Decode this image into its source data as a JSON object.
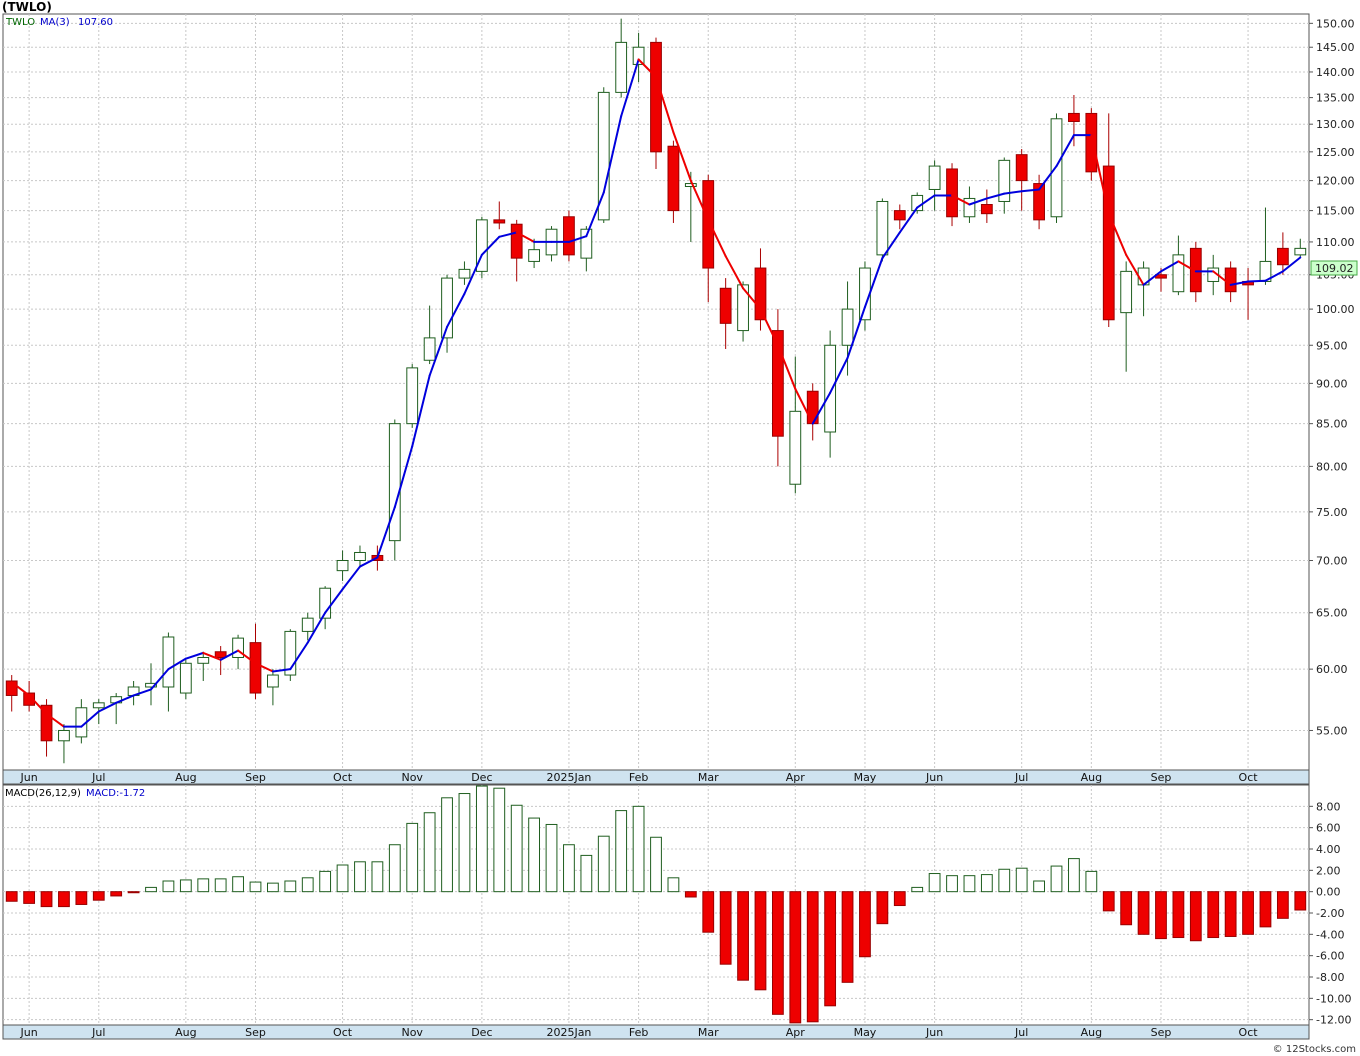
{
  "header": {
    "title": "(TWLO)"
  },
  "footer": {
    "credit": "© 12Stocks.com"
  },
  "chart_data": [
    {
      "type": "candlestick",
      "ticker": "TWLO",
      "legend": {
        "ticker_label": "TWLO",
        "ma_label": "MA(3)",
        "ma_value": "107.60"
      },
      "last_price": "109.02",
      "y_ticks": [
        55,
        60,
        65,
        70,
        75,
        80,
        85,
        90,
        95,
        100,
        105,
        110,
        115,
        120,
        125,
        130,
        135,
        140,
        145,
        150
      ],
      "y_tick_labels": [
        "55.00",
        "60.00",
        "65.00",
        "70.00",
        "75.00",
        "80.00",
        "85.00",
        "90.00",
        "95.00",
        "100.00",
        "105.00",
        "110.00",
        "115.00",
        "120.00",
        "125.00",
        "130.00",
        "135.00",
        "140.00",
        "145.00",
        "150.00"
      ],
      "scale": "log",
      "ylim": [
        52,
        152
      ],
      "months": [
        {
          "label": "Jun",
          "index": 1
        },
        {
          "label": "Jul",
          "index": 5
        },
        {
          "label": "Aug",
          "index": 10
        },
        {
          "label": "Sep",
          "index": 14
        },
        {
          "label": "Oct",
          "index": 19
        },
        {
          "label": "Nov",
          "index": 23
        },
        {
          "label": "Dec",
          "index": 27
        },
        {
          "label": "2025Jan",
          "index": 32
        },
        {
          "label": "Feb",
          "index": 36
        },
        {
          "label": "Mar",
          "index": 40
        },
        {
          "label": "Apr",
          "index": 45
        },
        {
          "label": "May",
          "index": 49
        },
        {
          "label": "Jun",
          "index": 53
        },
        {
          "label": "Jul",
          "index": 58
        },
        {
          "label": "Aug",
          "index": 62
        },
        {
          "label": "Sep",
          "index": 66
        },
        {
          "label": "Oct",
          "index": 71
        }
      ],
      "candles": [
        {
          "o": 59.0,
          "h": 59.5,
          "l": 56.5,
          "c": 57.8
        },
        {
          "o": 58.0,
          "h": 59.0,
          "l": 56.5,
          "c": 57.0
        },
        {
          "o": 57.0,
          "h": 57.5,
          "l": 53.0,
          "c": 54.2
        },
        {
          "o": 54.2,
          "h": 55.5,
          "l": 52.5,
          "c": 55.0
        },
        {
          "o": 54.5,
          "h": 57.5,
          "l": 54.0,
          "c": 56.8
        },
        {
          "o": 56.8,
          "h": 57.5,
          "l": 55.5,
          "c": 57.2
        },
        {
          "o": 57.2,
          "h": 58.0,
          "l": 55.5,
          "c": 57.7
        },
        {
          "o": 57.8,
          "h": 59.0,
          "l": 57.0,
          "c": 58.5
        },
        {
          "o": 58.5,
          "h": 60.5,
          "l": 57.0,
          "c": 58.8
        },
        {
          "o": 58.5,
          "h": 63.2,
          "l": 56.5,
          "c": 62.8
        },
        {
          "o": 58.0,
          "h": 60.8,
          "l": 57.5,
          "c": 60.5
        },
        {
          "o": 60.5,
          "h": 61.5,
          "l": 59.0,
          "c": 61.0
        },
        {
          "o": 61.5,
          "h": 62.0,
          "l": 59.5,
          "c": 61.0
        },
        {
          "o": 61.0,
          "h": 63.0,
          "l": 60.0,
          "c": 62.7
        },
        {
          "o": 62.3,
          "h": 64.0,
          "l": 57.5,
          "c": 58.0
        },
        {
          "o": 58.5,
          "h": 60.0,
          "l": 57.0,
          "c": 59.5
        },
        {
          "o": 59.5,
          "h": 63.5,
          "l": 59.0,
          "c": 63.3
        },
        {
          "o": 63.3,
          "h": 65.0,
          "l": 62.5,
          "c": 64.5
        },
        {
          "o": 64.5,
          "h": 67.5,
          "l": 63.5,
          "c": 67.3
        },
        {
          "o": 69.0,
          "h": 71.0,
          "l": 68.0,
          "c": 70.0
        },
        {
          "o": 70.0,
          "h": 71.5,
          "l": 69.5,
          "c": 70.8
        },
        {
          "o": 70.5,
          "h": 71.5,
          "l": 69.0,
          "c": 70.0
        },
        {
          "o": 72.0,
          "h": 85.5,
          "l": 70.0,
          "c": 85.0
        },
        {
          "o": 85.0,
          "h": 92.5,
          "l": 84.5,
          "c": 92.0
        },
        {
          "o": 93.0,
          "h": 100.5,
          "l": 92.5,
          "c": 96.0
        },
        {
          "o": 96.0,
          "h": 105.0,
          "l": 94.0,
          "c": 104.5
        },
        {
          "o": 104.5,
          "h": 107.0,
          "l": 103.5,
          "c": 105.8
        },
        {
          "o": 105.5,
          "h": 114.0,
          "l": 104.5,
          "c": 113.5
        },
        {
          "o": 113.5,
          "h": 116.5,
          "l": 112.0,
          "c": 113.0
        },
        {
          "o": 112.8,
          "h": 113.5,
          "l": 104.0,
          "c": 107.5
        },
        {
          "o": 107.0,
          "h": 110.5,
          "l": 106.0,
          "c": 108.8
        },
        {
          "o": 108.0,
          "h": 112.5,
          "l": 107.0,
          "c": 112.0
        },
        {
          "o": 114.0,
          "h": 115.0,
          "l": 107.0,
          "c": 108.0
        },
        {
          "o": 107.5,
          "h": 112.5,
          "l": 105.5,
          "c": 112.0
        },
        {
          "o": 113.5,
          "h": 137.0,
          "l": 113.0,
          "c": 136.0
        },
        {
          "o": 136.0,
          "h": 151.0,
          "l": 135.0,
          "c": 146.0
        },
        {
          "o": 141.5,
          "h": 148.0,
          "l": 138.0,
          "c": 145.0
        },
        {
          "o": 146.0,
          "h": 147.0,
          "l": 122.0,
          "c": 125.0
        },
        {
          "o": 126.0,
          "h": 127.0,
          "l": 113.0,
          "c": 115.0
        },
        {
          "o": 119.0,
          "h": 121.5,
          "l": 110.0,
          "c": 119.5
        },
        {
          "o": 120.0,
          "h": 121.0,
          "l": 101.0,
          "c": 106.0
        },
        {
          "o": 103.0,
          "h": 104.5,
          "l": 94.5,
          "c": 98.0
        },
        {
          "o": 97.0,
          "h": 104.0,
          "l": 95.5,
          "c": 103.5
        },
        {
          "o": 106.0,
          "h": 109.0,
          "l": 97.0,
          "c": 98.5
        },
        {
          "o": 97.0,
          "h": 100.0,
          "l": 80.0,
          "c": 83.5
        },
        {
          "o": 78.0,
          "h": 93.5,
          "l": 77.0,
          "c": 86.5
        },
        {
          "o": 89.0,
          "h": 90.0,
          "l": 83.0,
          "c": 85.0
        },
        {
          "o": 84.0,
          "h": 97.0,
          "l": 81.0,
          "c": 95.0
        },
        {
          "o": 95.0,
          "h": 104.0,
          "l": 91.0,
          "c": 100.0
        },
        {
          "o": 98.5,
          "h": 107.0,
          "l": 97.0,
          "c": 106.0
        },
        {
          "o": 108.0,
          "h": 117.0,
          "l": 107.0,
          "c": 116.5
        },
        {
          "o": 115.0,
          "h": 116.0,
          "l": 112.0,
          "c": 113.5
        },
        {
          "o": 115.0,
          "h": 118.0,
          "l": 114.5,
          "c": 117.5
        },
        {
          "o": 118.5,
          "h": 123.5,
          "l": 115.0,
          "c": 122.5
        },
        {
          "o": 122.0,
          "h": 123.0,
          "l": 112.5,
          "c": 114.0
        },
        {
          "o": 114.0,
          "h": 119.0,
          "l": 113.0,
          "c": 117.0
        },
        {
          "o": 116.0,
          "h": 118.5,
          "l": 113.0,
          "c": 114.5
        },
        {
          "o": 116.5,
          "h": 124.0,
          "l": 114.5,
          "c": 123.5
        },
        {
          "o": 124.5,
          "h": 125.5,
          "l": 115.0,
          "c": 120.0
        },
        {
          "o": 119.5,
          "h": 121.0,
          "l": 112.0,
          "c": 113.5
        },
        {
          "o": 114.0,
          "h": 132.0,
          "l": 113.0,
          "c": 131.0
        },
        {
          "o": 132.0,
          "h": 135.5,
          "l": 126.0,
          "c": 130.5
        },
        {
          "o": 132.0,
          "h": 133.0,
          "l": 120.0,
          "c": 121.5
        },
        {
          "o": 122.5,
          "h": 132.0,
          "l": 97.5,
          "c": 98.5
        },
        {
          "o": 99.5,
          "h": 107.0,
          "l": 91.5,
          "c": 105.5
        },
        {
          "o": 103.5,
          "h": 107.0,
          "l": 99.0,
          "c": 106.0
        },
        {
          "o": 105.0,
          "h": 106.0,
          "l": 102.5,
          "c": 104.5
        },
        {
          "o": 102.5,
          "h": 111.0,
          "l": 102.0,
          "c": 108.0
        },
        {
          "o": 109.0,
          "h": 110.0,
          "l": 101.0,
          "c": 102.5
        },
        {
          "o": 104.0,
          "h": 108.0,
          "l": 102.0,
          "c": 106.0
        },
        {
          "o": 106.0,
          "h": 107.0,
          "l": 101.0,
          "c": 102.5
        },
        {
          "o": 104.0,
          "h": 106.0,
          "l": 98.5,
          "c": 103.5
        },
        {
          "o": 104.0,
          "h": 115.5,
          "l": 103.5,
          "c": 107.0
        },
        {
          "o": 109.0,
          "h": 111.5,
          "l": 105.0,
          "c": 106.5
        },
        {
          "o": 108.0,
          "h": 110.5,
          "l": 107.5,
          "c": 109.0
        }
      ],
      "ma": [
        58.9,
        57.8,
        56.3,
        55.3,
        55.3,
        56.5,
        57.2,
        57.8,
        58.3,
        60.0,
        60.9,
        61.4,
        60.8,
        61.6,
        60.5,
        59.8,
        60.0,
        62.3,
        65.0,
        67.2,
        69.4,
        70.3,
        75.5,
        82.3,
        91.0,
        97.5,
        102.2,
        108.0,
        110.8,
        111.5,
        110.0,
        110.0,
        110.0,
        110.9,
        118.0,
        131.5,
        142.5,
        139.0,
        128.5,
        120.0,
        113.5,
        107.8,
        103.0,
        100.0,
        95.0,
        89.3,
        85.0,
        88.8,
        93.3,
        100.3,
        107.5,
        111.5,
        115.5,
        117.5,
        117.5,
        116.0,
        117.0,
        117.8,
        118.2,
        118.5,
        122.5,
        128.0,
        128.0,
        114.5,
        108.0,
        103.5,
        105.5,
        107.0,
        105.5,
        105.5,
        103.5,
        104.0,
        104.1,
        105.5,
        107.6
      ],
      "macd": {
        "label": "MACD(26,12,9)",
        "value_label": "MACD:-1.72",
        "y_ticks": [
          8,
          6,
          4,
          2,
          0,
          -2,
          -4,
          -6,
          -8,
          -10,
          -12
        ],
        "y_tick_labels": [
          "8.00",
          "6.00",
          "4.00",
          "2.00",
          "0.00",
          "-2.00",
          "-4.00",
          "-6.00",
          "-8.00",
          "-10.00",
          "-12.00"
        ],
        "ylim": [
          -12.5,
          10
        ],
        "values": [
          -0.9,
          -1.1,
          -1.4,
          -1.4,
          -1.2,
          -0.8,
          -0.4,
          -0.1,
          0.4,
          1.0,
          1.1,
          1.2,
          1.2,
          1.4,
          0.9,
          0.8,
          1.0,
          1.3,
          1.9,
          2.5,
          2.8,
          2.8,
          4.4,
          6.4,
          7.4,
          8.8,
          9.2,
          9.9,
          9.7,
          8.1,
          6.9,
          6.3,
          4.4,
          3.4,
          5.2,
          7.6,
          8.0,
          5.1,
          1.3,
          -0.5,
          -3.8,
          -6.8,
          -8.3,
          -9.2,
          -11.5,
          -12.3,
          -12.2,
          -10.7,
          -8.5,
          -6.1,
          -3.0,
          -1.3,
          0.4,
          1.7,
          1.5,
          1.5,
          1.6,
          2.1,
          2.2,
          1.0,
          2.4,
          3.1,
          1.9,
          -1.8,
          -3.1,
          -4.0,
          -4.4,
          -4.3,
          -4.6,
          -4.3,
          -4.2,
          -4.0,
          -3.3,
          -2.5,
          -1.72
        ]
      }
    }
  ]
}
